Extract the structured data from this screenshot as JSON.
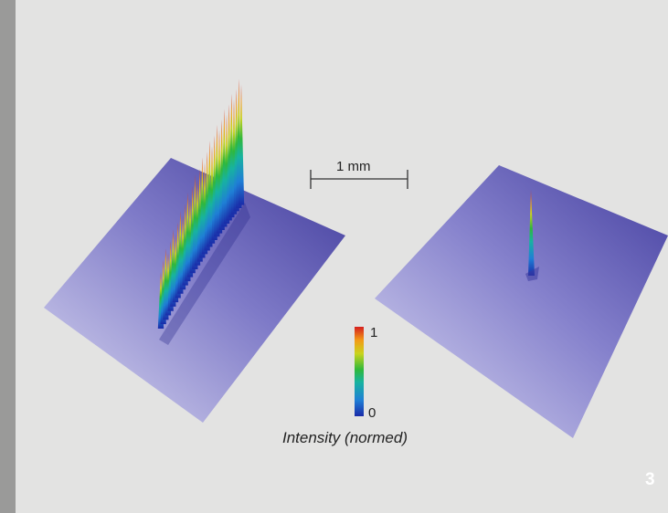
{
  "scale_bar": {
    "label": "1 mm"
  },
  "colorbar": {
    "max_label": "1",
    "min_label": "0",
    "title": "Intensity (normed)",
    "colors": [
      "#1a2ba8",
      "#1f7fd6",
      "#17b3a0",
      "#2fb83b",
      "#c9d41d",
      "#f39a16",
      "#d51f1f"
    ]
  },
  "figure_number": "3",
  "colors": {
    "background": "#e3e3e2",
    "side_bar": "#9a9a99",
    "plane_light": "#bab8e0",
    "plane_dark": "#5f5ab0"
  }
}
